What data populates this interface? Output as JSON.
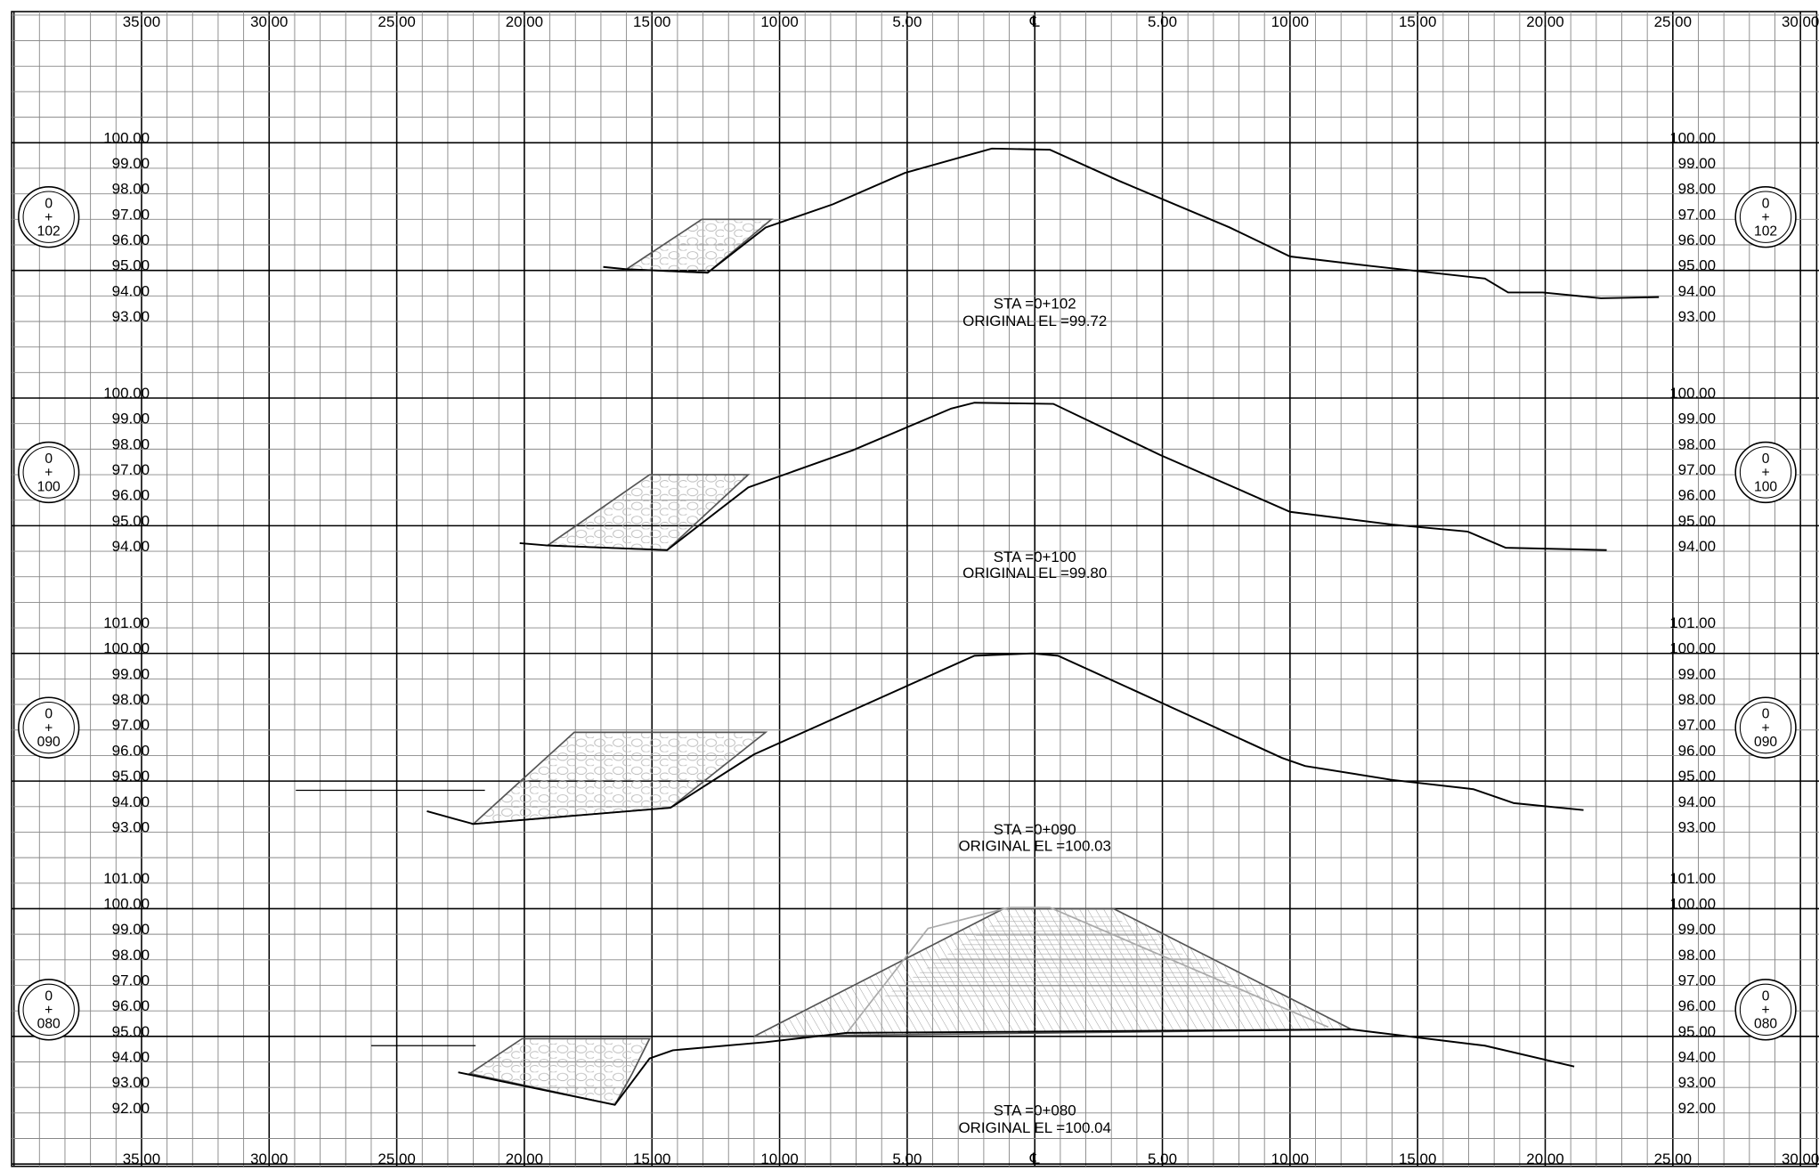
{
  "top_axis": [
    "35.00",
    "30.00",
    "25.00",
    "20.00",
    "15.00",
    "10.00",
    "5.00",
    "℄",
    "5.00",
    "10.00",
    "15.00",
    "20.00",
    "25.00",
    "30.00"
  ],
  "bottom_axis": [
    "35.00",
    "30.00",
    "25.00",
    "20.00",
    "15.00",
    "10.00",
    "5.00",
    "℄",
    "5.00",
    "10.00",
    "15.00",
    "20.00",
    "25.00",
    "30.00"
  ],
  "sections": [
    {
      "station": [
        "0",
        "+",
        "102"
      ],
      "elevations": [
        "100.00",
        "99.00",
        "98.00",
        "97.00",
        "96.00",
        "95.00",
        "94.00",
        "93.00"
      ],
      "sta": "STA =0+102",
      "original_el": "ORIGINAL EL =99.72"
    },
    {
      "station": [
        "0",
        "+",
        "100"
      ],
      "elevations": [
        "100.00",
        "99.00",
        "98.00",
        "97.00",
        "96.00",
        "95.00",
        "94.00"
      ],
      "sta": "STA =0+100",
      "original_el": "ORIGINAL EL =99.80"
    },
    {
      "station": [
        "0",
        "+",
        "090"
      ],
      "elevations": [
        "101.00",
        "100.00",
        "99.00",
        "98.00",
        "97.00",
        "96.00",
        "95.00",
        "94.00",
        "93.00"
      ],
      "sta": "STA =0+090",
      "original_el": "ORIGINAL EL =100.03"
    },
    {
      "station": [
        "0",
        "+",
        "080"
      ],
      "elevations": [
        "101.00",
        "100.00",
        "99.00",
        "98.00",
        "97.00",
        "96.00",
        "95.00",
        "94.00",
        "93.00",
        "92.00"
      ],
      "sta": "STA =0+080",
      "original_el": "ORIGINAL EL =100.04"
    }
  ]
}
